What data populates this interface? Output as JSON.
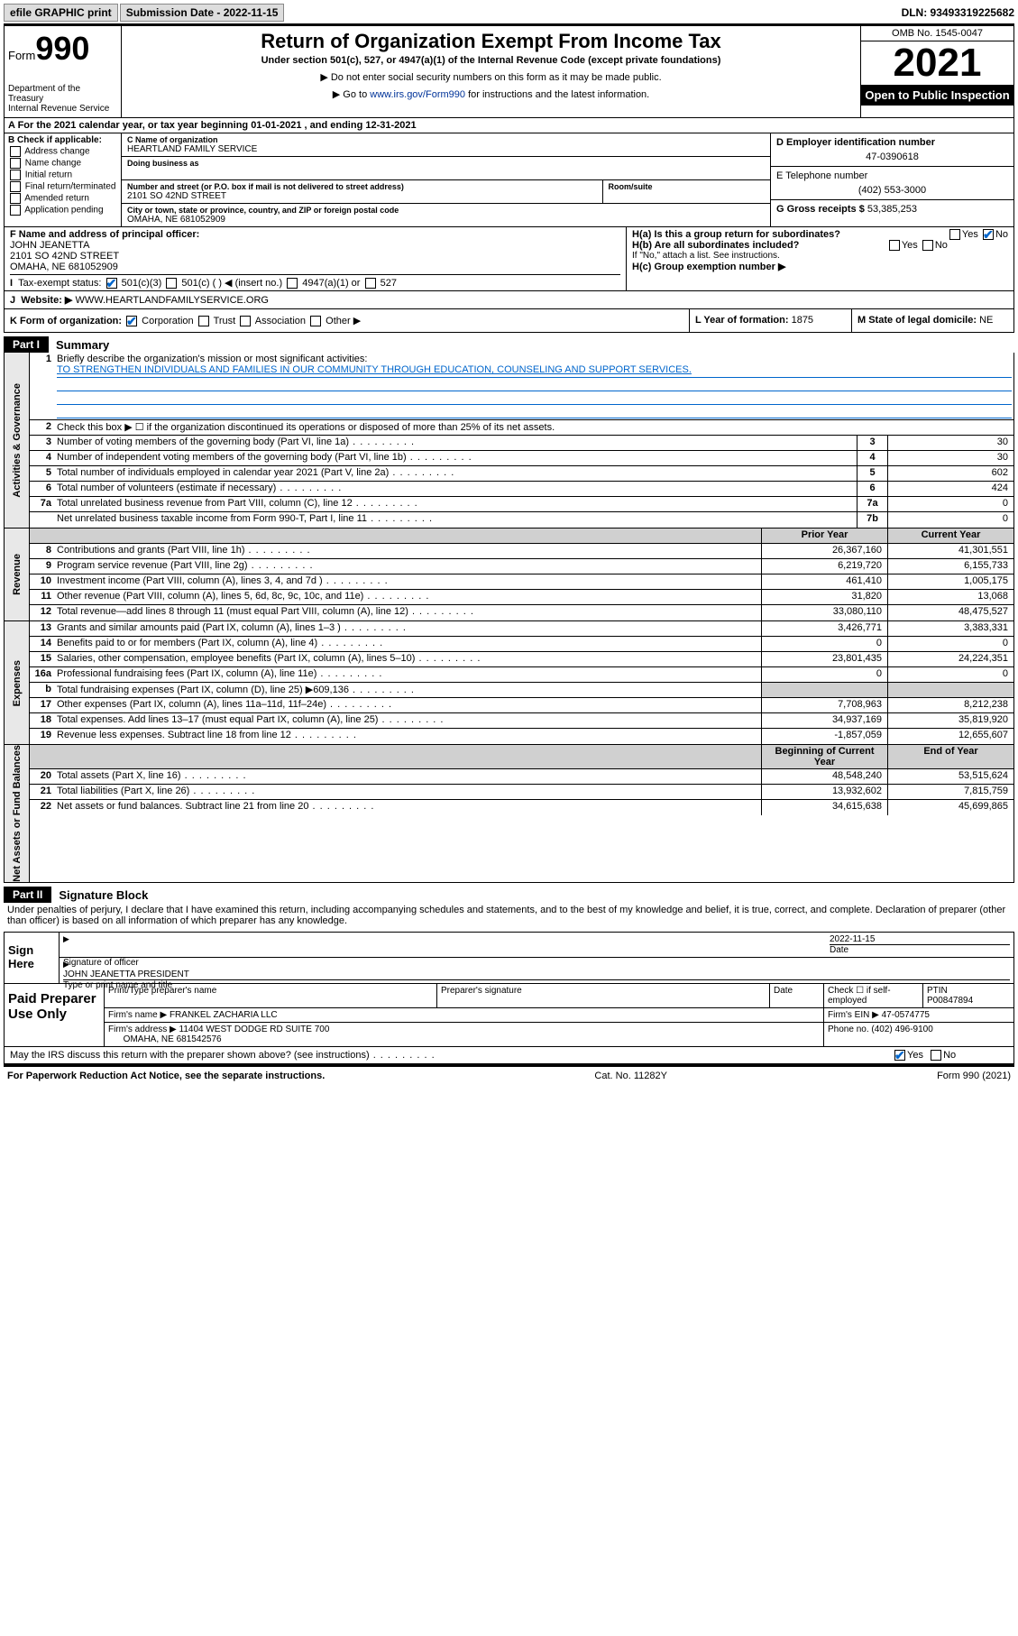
{
  "topbar": {
    "efile_btn": "efile GRAPHIC print",
    "sub_label": "Submission Date - 2022-11-15",
    "dln_label": "DLN: 93493319225682"
  },
  "header": {
    "form_word": "Form",
    "form_num": "990",
    "dept": "Department of the Treasury\nInternal Revenue Service",
    "title": "Return of Organization Exempt From Income Tax",
    "subtitle": "Under section 501(c), 527, or 4947(a)(1) of the Internal Revenue Code (except private foundations)",
    "note1": "▶ Do not enter social security numbers on this form as it may be made public.",
    "note2_pre": "▶ Go to ",
    "note2_link": "www.irs.gov/Form990",
    "note2_post": " for instructions and the latest information.",
    "omb": "OMB No. 1545-0047",
    "year": "2021",
    "open_public": "Open to Public Inspection"
  },
  "line_a": "A For the 2021 calendar year, or tax year beginning 01-01-2021   , and ending 12-31-2021",
  "col_b": {
    "title": "B Check if applicable:",
    "items": [
      "Address change",
      "Name change",
      "Initial return",
      "Final return/terminated",
      "Amended return",
      "Application pending"
    ]
  },
  "col_c": {
    "name_lbl": "C Name of organization",
    "name": "HEARTLAND FAMILY SERVICE",
    "dba_lbl": "Doing business as",
    "addr_lbl": "Number and street (or P.O. box if mail is not delivered to street address)",
    "room_lbl": "Room/suite",
    "addr": "2101 SO 42ND STREET",
    "city_lbl": "City or town, state or province, country, and ZIP or foreign postal code",
    "city": "OMAHA, NE  681052909"
  },
  "col_d": {
    "d_lbl": "D Employer identification number",
    "d_val": "47-0390618",
    "e_lbl": "E Telephone number",
    "e_val": "(402) 553-3000",
    "g_lbl": "G Gross receipts $",
    "g_val": "53,385,253"
  },
  "row_f": {
    "f_lbl": "F Name and address of principal officer:",
    "f_name": "JOHN JEANETTA",
    "f_addr1": "2101 SO 42ND STREET",
    "f_addr2": "OMAHA, NE  681052909",
    "i_lbl": "Tax-exempt status:",
    "i_opts": [
      "501(c)(3)",
      "501(c) (  ) ◀ (insert no.)",
      "4947(a)(1) or",
      "527"
    ],
    "j_lbl": "Website: ▶",
    "j_val": "WWW.HEARTLANDFAMILYSERVICE.ORG"
  },
  "row_h": {
    "ha": "H(a)  Is this a group return for subordinates?",
    "hb": "H(b)  Are all subordinates included?",
    "hb_note": "If \"No,\" attach a list. See instructions.",
    "hc": "H(c)  Group exemption number ▶",
    "yes": "Yes",
    "no": "No"
  },
  "row_k": {
    "k_lbl": "K Form of organization:",
    "k_opts": [
      "Corporation",
      "Trust",
      "Association",
      "Other ▶"
    ],
    "l_lbl": "L Year of formation:",
    "l_val": "1875",
    "m_lbl": "M State of legal domicile:",
    "m_val": "NE"
  },
  "part1": {
    "tab": "Part I",
    "name": "Summary",
    "q1": "Briefly describe the organization's mission or most significant activities:",
    "q1_ans": "TO STRENGTHEN INDIVIDUALS AND FAMILIES IN OUR COMMUNITY THROUGH EDUCATION, COUNSELING AND SUPPORT SERVICES.",
    "q2": "Check this box ▶ ☐  if the organization discontinued its operations or disposed of more than 25% of its net assets.",
    "gov_label": "Activities & Governance",
    "rows_gov": [
      {
        "n": "3",
        "t": "Number of voting members of the governing body (Part VI, line 1a)",
        "k": "3",
        "v": "30"
      },
      {
        "n": "4",
        "t": "Number of independent voting members of the governing body (Part VI, line 1b)",
        "k": "4",
        "v": "30"
      },
      {
        "n": "5",
        "t": "Total number of individuals employed in calendar year 2021 (Part V, line 2a)",
        "k": "5",
        "v": "602"
      },
      {
        "n": "6",
        "t": "Total number of volunteers (estimate if necessary)",
        "k": "6",
        "v": "424"
      },
      {
        "n": "7a",
        "t": "Total unrelated business revenue from Part VIII, column (C), line 12",
        "k": "7a",
        "v": "0"
      },
      {
        "n": "",
        "t": "Net unrelated business taxable income from Form 990-T, Part I, line 11",
        "k": "7b",
        "v": "0"
      }
    ],
    "hdr_prior": "Prior Year",
    "hdr_curr": "Current Year",
    "rev_label": "Revenue",
    "rows_rev": [
      {
        "n": "8",
        "t": "Contributions and grants (Part VIII, line 1h)",
        "p": "26,367,160",
        "c": "41,301,551"
      },
      {
        "n": "9",
        "t": "Program service revenue (Part VIII, line 2g)",
        "p": "6,219,720",
        "c": "6,155,733"
      },
      {
        "n": "10",
        "t": "Investment income (Part VIII, column (A), lines 3, 4, and 7d )",
        "p": "461,410",
        "c": "1,005,175"
      },
      {
        "n": "11",
        "t": "Other revenue (Part VIII, column (A), lines 5, 6d, 8c, 9c, 10c, and 11e)",
        "p": "31,820",
        "c": "13,068"
      },
      {
        "n": "12",
        "t": "Total revenue—add lines 8 through 11 (must equal Part VIII, column (A), line 12)",
        "p": "33,080,110",
        "c": "48,475,527"
      }
    ],
    "exp_label": "Expenses",
    "rows_exp": [
      {
        "n": "13",
        "t": "Grants and similar amounts paid (Part IX, column (A), lines 1–3 )",
        "p": "3,426,771",
        "c": "3,383,331"
      },
      {
        "n": "14",
        "t": "Benefits paid to or for members (Part IX, column (A), line 4)",
        "p": "0",
        "c": "0"
      },
      {
        "n": "15",
        "t": "Salaries, other compensation, employee benefits (Part IX, column (A), lines 5–10)",
        "p": "23,801,435",
        "c": "24,224,351"
      },
      {
        "n": "16a",
        "t": "Professional fundraising fees (Part IX, column (A), line 11e)",
        "p": "0",
        "c": "0"
      },
      {
        "n": "b",
        "t": "Total fundraising expenses (Part IX, column (D), line 25) ▶609,136",
        "p": "",
        "c": "",
        "shade": true
      },
      {
        "n": "17",
        "t": "Other expenses (Part IX, column (A), lines 11a–11d, 11f–24e)",
        "p": "7,708,963",
        "c": "8,212,238"
      },
      {
        "n": "18",
        "t": "Total expenses. Add lines 13–17 (must equal Part IX, column (A), line 25)",
        "p": "34,937,169",
        "c": "35,819,920"
      },
      {
        "n": "19",
        "t": "Revenue less expenses. Subtract line 18 from line 12",
        "p": "-1,857,059",
        "c": "12,655,607"
      }
    ],
    "na_label": "Net Assets or Fund Balances",
    "hdr_beg": "Beginning of Current Year",
    "hdr_end": "End of Year",
    "rows_na": [
      {
        "n": "20",
        "t": "Total assets (Part X, line 16)",
        "p": "48,548,240",
        "c": "53,515,624"
      },
      {
        "n": "21",
        "t": "Total liabilities (Part X, line 26)",
        "p": "13,932,602",
        "c": "7,815,759"
      },
      {
        "n": "22",
        "t": "Net assets or fund balances. Subtract line 21 from line 20",
        "p": "34,615,638",
        "c": "45,699,865"
      }
    ]
  },
  "part2": {
    "tab": "Part II",
    "name": "Signature Block",
    "decl": "Under penalties of perjury, I declare that I have examined this return, including accompanying schedules and statements, and to the best of my knowledge and belief, it is true, correct, and complete. Declaration of preparer (other than officer) is based on all information of which preparer has any knowledge.",
    "sign_here": "Sign Here",
    "sig_officer": "Signature of officer",
    "sig_date_lbl": "Date",
    "sig_date": "2022-11-15",
    "sig_name": "JOHN JEANETTA PRESIDENT",
    "sig_name_lbl": "Type or print name and title",
    "paid": "Paid Preparer Use Only",
    "p_name_lbl": "Print/Type preparer's name",
    "p_sig_lbl": "Preparer's signature",
    "p_date_lbl": "Date",
    "p_check": "Check ☐ if self-employed",
    "p_ptin_lbl": "PTIN",
    "p_ptin": "P00847894",
    "firm_name_lbl": "Firm's name    ▶",
    "firm_name": "FRANKEL ZACHARIA LLC",
    "firm_ein_lbl": "Firm's EIN ▶",
    "firm_ein": "47-0574775",
    "firm_addr_lbl": "Firm's address ▶",
    "firm_addr1": "11404 WEST DODGE RD SUITE 700",
    "firm_addr2": "OMAHA, NE  681542576",
    "firm_phone_lbl": "Phone no.",
    "firm_phone": "(402) 496-9100",
    "discuss": "May the IRS discuss this return with the preparer shown above? (see instructions)",
    "paperwork": "For Paperwork Reduction Act Notice, see the separate instructions.",
    "catno": "Cat. No. 11282Y",
    "formfoot": "Form 990 (2021)"
  }
}
